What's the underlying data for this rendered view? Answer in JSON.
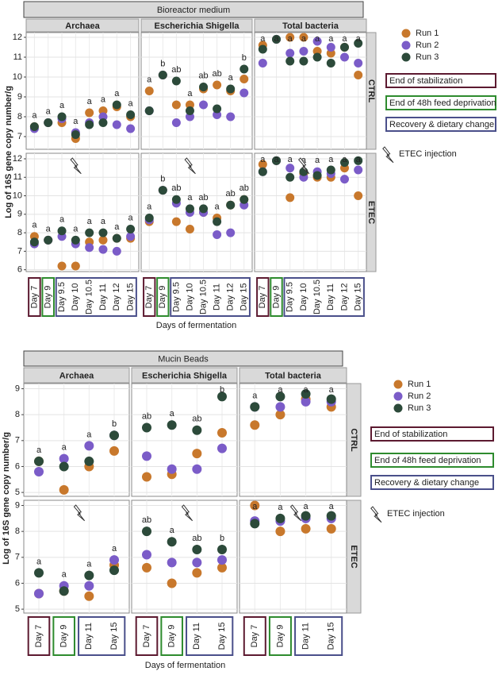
{
  "chart_data": [
    {
      "type": "scatter",
      "title": "Bioreactor medium",
      "ylabel": "Log of 16S gene copy number/g",
      "xlabel": "Days of fermentation",
      "categories": [
        "Day 7",
        "Day 9",
        "Day 9.5",
        "Day 10",
        "Day 10.5",
        "Day 11",
        "Day 12",
        "Day 15"
      ],
      "columns": [
        "Archaea",
        "Escherichia Shigella",
        "Total bacteria"
      ],
      "series": [
        {
          "name": "Run 1",
          "color": "#c8782c"
        },
        {
          "name": "Run 2",
          "color": "#7b5cc8"
        },
        {
          "name": "Run 3",
          "color": "#2c4a3a"
        }
      ],
      "phases": [
        {
          "label": "End of stabilization",
          "color": "#5c1a30",
          "categories": [
            0
          ]
        },
        {
          "label": "End of 48h feed deprivation",
          "color": "#2e8b2e",
          "categories": [
            1
          ]
        },
        {
          "label": "Recovery & dietary change",
          "color": "#4a4f8a",
          "categories": [
            2,
            3,
            4,
            5,
            6,
            7
          ]
        }
      ],
      "injection_label": "ETEC injection",
      "grid": true,
      "rows": [
        {
          "label": "CTRL",
          "ylim": [
            6.36,
            12.24
          ],
          "yticks": [
            7,
            8,
            9,
            10,
            11,
            12
          ],
          "panels": [
            {
              "values": [
                [
                  7.5,
                  7.7,
                  7.7,
                  6.9,
                  8.2,
                  8.3,
                  8.5,
                  8.0
                ],
                [
                  7.4,
                  7.7,
                  7.9,
                  7.2,
                  7.7,
                  8.0,
                  7.6,
                  7.4
                ],
                [
                  7.5,
                  7.7,
                  8.0,
                  7.1,
                  7.6,
                  7.7,
                  8.6,
                  8.1
                ]
              ],
              "letters": [
                "a",
                "a",
                "a",
                "a",
                "a",
                "a",
                "a",
                "a"
              ]
            },
            {
              "values": [
                [
                  9.3,
                  10.1,
                  8.6,
                  8.6,
                  9.4,
                  9.6,
                  9.3,
                  9.9
                ],
                [
                  8.3,
                  10.1,
                  7.7,
                  8.0,
                  8.6,
                  8.1,
                  8.0,
                  9.2
                ],
                [
                  8.3,
                  10.1,
                  9.8,
                  8.3,
                  9.5,
                  8.4,
                  9.4,
                  10.4
                ]
              ],
              "letters": [
                "a",
                "b",
                "ab",
                "a",
                "ab",
                "ab",
                "a",
                "b"
              ]
            },
            {
              "values": [
                [
                  11.6,
                  11.9,
                  12.0,
                  12.0,
                  11.3,
                  11.2,
                  11.5,
                  10.1
                ],
                [
                  10.7,
                  11.9,
                  11.2,
                  11.3,
                  11.8,
                  11.5,
                  11.0,
                  10.7
                ],
                [
                  11.4,
                  11.9,
                  10.8,
                  10.8,
                  11.0,
                  10.7,
                  11.5,
                  11.7
                ]
              ],
              "letters": [
                "a",
                "a",
                "a",
                "a",
                "a",
                "a",
                "a",
                "a"
              ]
            }
          ]
        },
        {
          "label": "ETEC",
          "ylim": [
            5.9,
            12.3
          ],
          "yticks": [
            6,
            7,
            8,
            9,
            10,
            11,
            12
          ],
          "panels": [
            {
              "values": [
                [
                  7.8,
                  7.6,
                  6.2,
                  6.2,
                  7.5,
                  7.6,
                  7.7,
                  7.7
                ],
                [
                  7.4,
                  7.6,
                  7.8,
                  7.4,
                  7.2,
                  7.1,
                  7.0,
                  7.8
                ],
                [
                  7.5,
                  7.6,
                  8.1,
                  7.6,
                  8.0,
                  8.0,
                  7.7,
                  8.2
                ]
              ],
              "letters": [
                "a",
                "a",
                "a",
                "a",
                "a",
                "a",
                "a",
                "a"
              ]
            },
            {
              "values": [
                [
                  8.6,
                  10.3,
                  8.6,
                  8.2,
                  9.1,
                  8.8,
                  9.5,
                  9.8
                ],
                [
                  8.7,
                  10.3,
                  9.6,
                  9.1,
                  9.1,
                  7.9,
                  8.0,
                  9.5
                ],
                [
                  8.8,
                  10.3,
                  9.8,
                  9.3,
                  9.3,
                  8.6,
                  9.5,
                  9.8
                ]
              ],
              "letters": [
                "a",
                "b",
                "ab",
                "a",
                "ab",
                "a",
                "ab",
                "ab"
              ]
            },
            {
              "values": [
                [
                  11.7,
                  11.9,
                  9.9,
                  11.2,
                  11.0,
                  11.0,
                  11.5,
                  10.0
                ],
                [
                  11.3,
                  11.9,
                  11.5,
                  11.0,
                  11.3,
                  11.2,
                  10.9,
                  11.4
                ],
                [
                  11.3,
                  11.9,
                  11.0,
                  11.3,
                  11.1,
                  11.4,
                  11.8,
                  11.9
                ]
              ],
              "letters": [
                "a",
                "a",
                "a",
                "a",
                "a",
                "a",
                "a",
                "a"
              ]
            }
          ]
        }
      ]
    },
    {
      "type": "scatter",
      "title": "Mucin Beads",
      "ylabel": "Log of 16S gene copy number/g",
      "xlabel": "Days of fermentation",
      "categories": [
        "Day 7",
        "Day 9",
        "Day 11",
        "Day 15"
      ],
      "columns": [
        "Archaea",
        "Escherichia Shigella",
        "Total bacteria"
      ],
      "series": [
        {
          "name": "Run 1",
          "color": "#c8782c"
        },
        {
          "name": "Run 2",
          "color": "#7b5cc8"
        },
        {
          "name": "Run 3",
          "color": "#2c4a3a"
        }
      ],
      "phases": [
        {
          "label": "End of stabilization",
          "color": "#5c1a30",
          "categories": [
            0
          ]
        },
        {
          "label": "End of 48h feed deprivation",
          "color": "#2e8b2e",
          "categories": [
            1
          ]
        },
        {
          "label": "Recovery & dietary change",
          "color": "#4a4f8a",
          "categories": [
            2,
            3
          ]
        }
      ],
      "injection_label": "ETEC injection",
      "grid": true,
      "rows": [
        {
          "label": "CTRL",
          "ylim": [
            4.85,
            9.2
          ],
          "yticks": [
            5,
            6,
            7,
            8,
            9
          ],
          "panels": [
            {
              "values": [
                [
                  6.2,
                  5.1,
                  6.0,
                  6.6
                ],
                [
                  5.8,
                  6.3,
                  6.8,
                  7.2
                ],
                [
                  6.2,
                  6.0,
                  6.2,
                  7.2
                ]
              ],
              "letters": [
                "a",
                "a",
                "a",
                "b"
              ]
            },
            {
              "values": [
                [
                  5.6,
                  5.7,
                  6.5,
                  7.3
                ],
                [
                  6.4,
                  5.9,
                  5.9,
                  6.7
                ],
                [
                  7.5,
                  7.6,
                  7.4,
                  8.7
                ]
              ],
              "letters": [
                "ab",
                "a",
                "ab",
                "b"
              ]
            },
            {
              "values": [
                [
                  7.6,
                  8.0,
                  8.6,
                  8.3
                ],
                [
                  8.3,
                  8.3,
                  8.5,
                  8.5
                ],
                [
                  8.3,
                  8.7,
                  8.8,
                  8.6
                ]
              ],
              "letters": [
                "a",
                "a",
                "a",
                "a"
              ]
            }
          ]
        },
        {
          "label": "ETEC",
          "ylim": [
            4.85,
            9.2
          ],
          "yticks": [
            5,
            6,
            7,
            8,
            9
          ],
          "panels": [
            {
              "values": [
                [
                  5.6,
                  5.7,
                  5.5,
                  6.7
                ],
                [
                  5.6,
                  5.9,
                  5.9,
                  6.9
                ],
                [
                  6.4,
                  5.7,
                  6.3,
                  6.5
                ]
              ],
              "letters": [
                "a",
                "a",
                "a",
                "a"
              ]
            },
            {
              "values": [
                [
                  6.6,
                  6.0,
                  6.4,
                  6.6
                ],
                [
                  7.1,
                  6.8,
                  6.8,
                  6.9
                ],
                [
                  8.0,
                  7.6,
                  7.3,
                  7.3
                ]
              ],
              "letters": [
                "ab",
                "a",
                "ab",
                "b"
              ]
            },
            {
              "values": [
                [
                  9.0,
                  8.0,
                  8.1,
                  8.1
                ],
                [
                  8.4,
                  8.4,
                  8.5,
                  8.5
                ],
                [
                  8.3,
                  8.5,
                  8.6,
                  8.6
                ]
              ],
              "letters": [
                "a",
                "a",
                "a",
                "a"
              ]
            }
          ]
        }
      ]
    }
  ]
}
